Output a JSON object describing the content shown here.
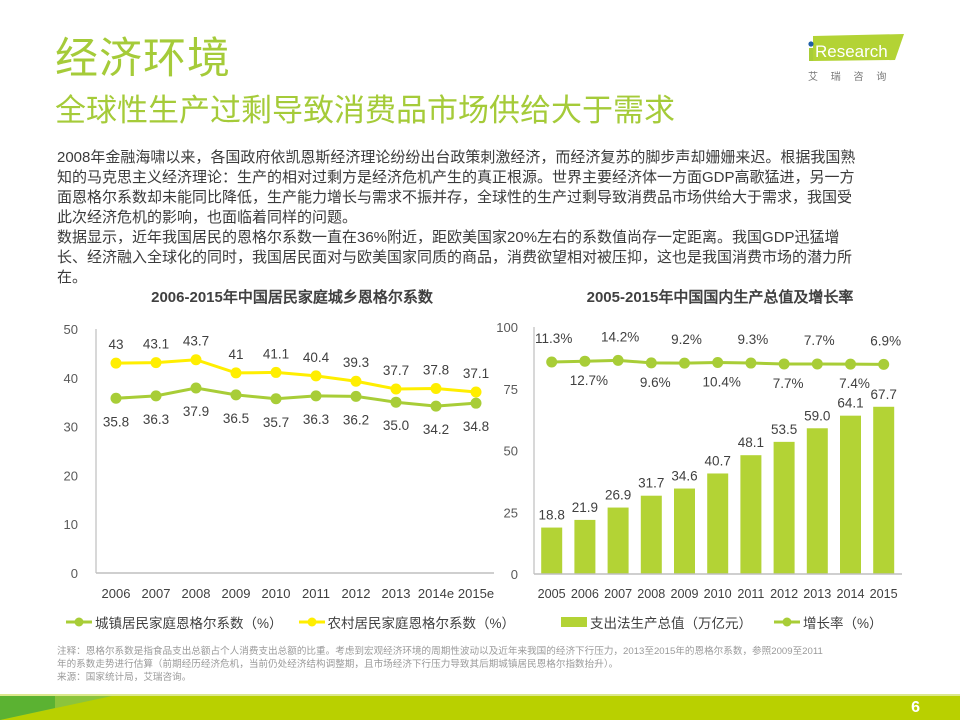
{
  "header": {
    "title": "经济环境",
    "subtitle": "全球性生产过剩导致消费品市场供给大于需求"
  },
  "logo": {
    "prefix": "i",
    "brand": "Research",
    "tagline": "艾 瑞 咨 询"
  },
  "body": {
    "lines": [
      "2008年金融海啸以来，各国政府依凯恩斯经济理论纷纷出台政策刺激经济，而经济复苏的脚步声却姗姗来迟。根据我国熟",
      "知的马克思主义经济理论：生产的相对过剩方是经济危机产生的真正根源。世界主要经济体一方面GDP高歌猛进，另一方",
      "面恩格尔系数却未能同比降低，生产能力增长与需求不振并存，全球性的生产过剩导致消费品市场供给大于需求，我国受",
      "此次经济危机的影响，也面临着同样的问题。",
      "数据显示，近年我国居民的恩格尔系数一直在36%附近，距欧美国家20%左右的系数值尚存一定距离。我国GDP迅猛增",
      "长、经济融入全球化的同时，我国居民面对与欧美国家同质的商品，消费欲望相对被压抑，这也是我国消费市场的潜力所",
      "在。"
    ]
  },
  "chart_data": [
    {
      "type": "line",
      "title": "2006-2015年中国居民家庭城乡恩格尔系数",
      "xlabel": "",
      "ylabel": "",
      "categories": [
        "2006",
        "2007",
        "2008",
        "2009",
        "2010",
        "2011",
        "2012",
        "2013",
        "2014e",
        "2015e"
      ],
      "ylim": [
        0,
        50
      ],
      "yticks": [
        "0",
        "10",
        "20",
        "30",
        "40",
        "50"
      ],
      "grid": false,
      "legend": "bottom",
      "series": [
        {
          "name": "城镇居民家庭恩格尔系数（%）",
          "values": [
            35.8,
            36.3,
            37.9,
            36.5,
            35.7,
            36.3,
            36.2,
            35.0,
            34.2,
            34.8
          ],
          "labels": [
            "35.8",
            "36.3",
            "37.9",
            "36.5",
            "35.7",
            "36.3",
            "36.2",
            "35.0",
            "34.2",
            "34.8"
          ],
          "label_position": "below",
          "color": "#A8CD37"
        },
        {
          "name": "农村居民家庭恩格尔系数（%）",
          "values": [
            43,
            43.1,
            43.7,
            41,
            41.1,
            40.4,
            39.3,
            37.7,
            37.8,
            37.1
          ],
          "labels": [
            "43",
            "43.1",
            "43.7",
            "41",
            "41.1",
            "40.4",
            "39.3",
            "37.7",
            "37.8",
            "37.1"
          ],
          "label_position": "above",
          "color": "#FFEE00"
        }
      ]
    },
    {
      "type": "bar",
      "title": "2005-2015年中国国内生产总值及增长率",
      "xlabel": "",
      "ylabel": "",
      "categories": [
        "2005",
        "2006",
        "2007",
        "2008",
        "2009",
        "2010",
        "2011",
        "2012",
        "2013",
        "2014",
        "2015"
      ],
      "ylim": [
        0,
        100
      ],
      "yticks": [
        "0",
        "25",
        "50",
        "75",
        "100"
      ],
      "y2lim": [
        -375,
        75
      ],
      "y2_visible": false,
      "grid": false,
      "legend": "bottom",
      "series": [
        {
          "name": "支出法生产总值（万亿元）",
          "type": "bar",
          "axis": "primary",
          "values": [
            18.8,
            21.9,
            26.9,
            31.7,
            34.6,
            40.7,
            48.1,
            53.5,
            59.0,
            64.1,
            67.7
          ],
          "labels": [
            "18.8",
            "21.9",
            "26.9",
            "31.7",
            "34.6",
            "40.7",
            "48.1",
            "53.5",
            "59.0",
            "64.1",
            "67.7"
          ],
          "color": "#B3D335"
        },
        {
          "name": "增长率（%）",
          "type": "line",
          "axis": "secondary",
          "values": [
            11.3,
            12.7,
            14.2,
            9.6,
            9.2,
            10.4,
            9.3,
            7.7,
            7.7,
            7.4,
            6.9
          ],
          "labels": [
            "11.3%",
            "12.7%",
            "14.2%",
            "9.6%",
            "9.2%",
            "10.4%",
            "9.3%",
            "7.7%",
            "7.7%",
            "7.4%",
            "6.9%"
          ],
          "label_positions": [
            "above",
            "below",
            "above",
            "below",
            "above",
            "below",
            "above",
            "below",
            "above",
            "below",
            "above"
          ],
          "color": "#A8CD37"
        }
      ]
    }
  ],
  "notes": {
    "lines": [
      "注释：恩格尔系数是指食品支出总额占个人消费支出总额的比重。考虑到宏观经济环境的周期性波动以及近年来我国的经济下行压力，2013至2015年的恩格尔系数，参照2009至2011",
      "年的系数走势进行估算（前期经历经济危机，当前仍处经济结构调整期，且市场经济下行压力导致其后期城镇居民恩格尔指数抬升）。",
      "来源：国家统计局，艾瑞咨询。"
    ]
  },
  "footer": {
    "page_number": "6"
  },
  "colors": {
    "accent": "#A5CB39",
    "logo_blue": "#1F5FA8",
    "footer_main": "#B9D000",
    "footer_dark": "#5BB232",
    "footer_mid": "#8CC43C"
  }
}
